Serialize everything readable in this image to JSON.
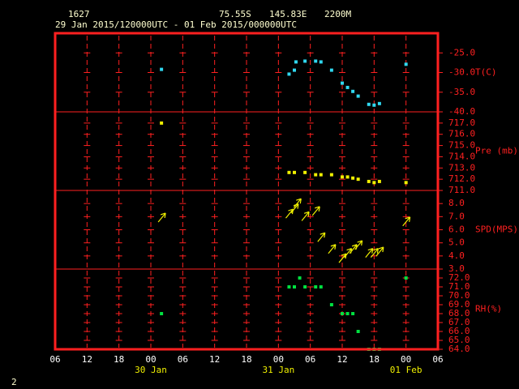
{
  "header": {
    "station": "1627",
    "latitude": "75.55S",
    "longitude": "145.83E",
    "elevation": "2200M",
    "period": "29 Jan 2015/120000UTC - 01 Feb 2015/000000UTC",
    "page": "2"
  },
  "x_axis": {
    "xlim": [
      0,
      72
    ],
    "xticks": [
      {
        "value": 0,
        "label": "06"
      },
      {
        "value": 6,
        "label": "12"
      },
      {
        "value": 12,
        "label": "18"
      },
      {
        "value": 18,
        "label": "00"
      },
      {
        "value": 24,
        "label": "06"
      },
      {
        "value": 30,
        "label": "12"
      },
      {
        "value": 36,
        "label": "18"
      },
      {
        "value": 42,
        "label": "00"
      },
      {
        "value": 48,
        "label": "06"
      },
      {
        "value": 54,
        "label": "12"
      },
      {
        "value": 60,
        "label": "18"
      },
      {
        "value": 66,
        "label": "00"
      },
      {
        "value": 72,
        "label": "06"
      }
    ],
    "day_labels": [
      {
        "value": 18,
        "label": "30 Jan"
      },
      {
        "value": 42,
        "label": "31 Jan"
      },
      {
        "value": 66,
        "label": "01 Feb"
      }
    ]
  },
  "chart_data": [
    {
      "type": "scatter",
      "y_label": "T(C)",
      "color": "#30d8f0",
      "ylim": [
        -40,
        -20
      ],
      "yticks": [
        {
          "value": -40,
          "label": "-40.0"
        },
        {
          "value": -35,
          "label": "-35.0"
        },
        {
          "value": -30,
          "label": "-30.0"
        },
        {
          "value": -25,
          "label": "-25.0"
        }
      ],
      "x": [
        20,
        44,
        45,
        45.3,
        47,
        49,
        50,
        52,
        54,
        55,
        56,
        57,
        59,
        60,
        61,
        66
      ],
      "values": [
        -29.2,
        -30.4,
        -29.4,
        -27.3,
        -27.1,
        -27.1,
        -27.3,
        -29.4,
        -32.7,
        -33.8,
        -34.8,
        -36.0,
        -38.1,
        -38.3,
        -37.9,
        -27.9
      ]
    },
    {
      "type": "scatter",
      "y_label": "Pre (mb)",
      "color": "#f0f000",
      "ylim": [
        711,
        718
      ],
      "yticks": [
        {
          "value": 711,
          "label": "711.0"
        },
        {
          "value": 712,
          "label": "712.0"
        },
        {
          "value": 713,
          "label": "713.0"
        },
        {
          "value": 714,
          "label": "714.0"
        },
        {
          "value": 715,
          "label": "715.0"
        },
        {
          "value": 716,
          "label": "716.0"
        },
        {
          "value": 717,
          "label": "717.0"
        }
      ],
      "x": [
        20,
        44,
        45,
        47,
        49,
        50,
        52,
        54,
        55,
        56,
        57,
        59,
        60,
        61,
        66
      ],
      "values": [
        717.0,
        712.6,
        712.6,
        712.6,
        712.4,
        712.4,
        712.4,
        712.2,
        712.2,
        712.1,
        712.0,
        711.8,
        711.7,
        711.8,
        711.7
      ]
    },
    {
      "type": "wind",
      "y_label": "SPD(MPS)",
      "color": "#f0f000",
      "ylim": [
        3,
        9
      ],
      "yticks": [
        {
          "value": 3,
          "label": "3.0"
        },
        {
          "value": 4,
          "label": "4.0"
        },
        {
          "value": 5,
          "label": "5.0"
        },
        {
          "value": 6,
          "label": "6.0"
        },
        {
          "value": 7,
          "label": "7.0"
        },
        {
          "value": 8,
          "label": "8.0"
        }
      ],
      "x": [
        20,
        44,
        45,
        45.5,
        47,
        49,
        50,
        52,
        54,
        55,
        56,
        57,
        59,
        60,
        61,
        66
      ],
      "values": [
        6.9,
        7.2,
        7.6,
        8.0,
        7.0,
        7.4,
        5.4,
        4.5,
        3.8,
        4.2,
        4.5,
        4.8,
        4.2,
        4.2,
        4.3,
        6.6
      ]
    },
    {
      "type": "scatter",
      "y_label": "RH(%)",
      "color": "#00e040",
      "ylim": [
        64,
        73
      ],
      "yticks": [
        {
          "value": 64,
          "label": "64.0"
        },
        {
          "value": 65,
          "label": "65.0"
        },
        {
          "value": 66,
          "label": "66.0"
        },
        {
          "value": 67,
          "label": "67.0"
        },
        {
          "value": 68,
          "label": "68.0"
        },
        {
          "value": 69,
          "label": "69.0"
        },
        {
          "value": 70,
          "label": "70.0"
        },
        {
          "value": 71,
          "label": "71.0"
        },
        {
          "value": 72,
          "label": "72.0"
        }
      ],
      "x": [
        20,
        44,
        45,
        46,
        47,
        49,
        50,
        52,
        54,
        55,
        56,
        57,
        59,
        60,
        61,
        66
      ],
      "values": [
        68,
        71,
        71,
        72,
        71,
        71,
        71,
        69,
        68,
        68,
        68,
        66,
        64,
        64,
        64,
        72
      ]
    }
  ]
}
